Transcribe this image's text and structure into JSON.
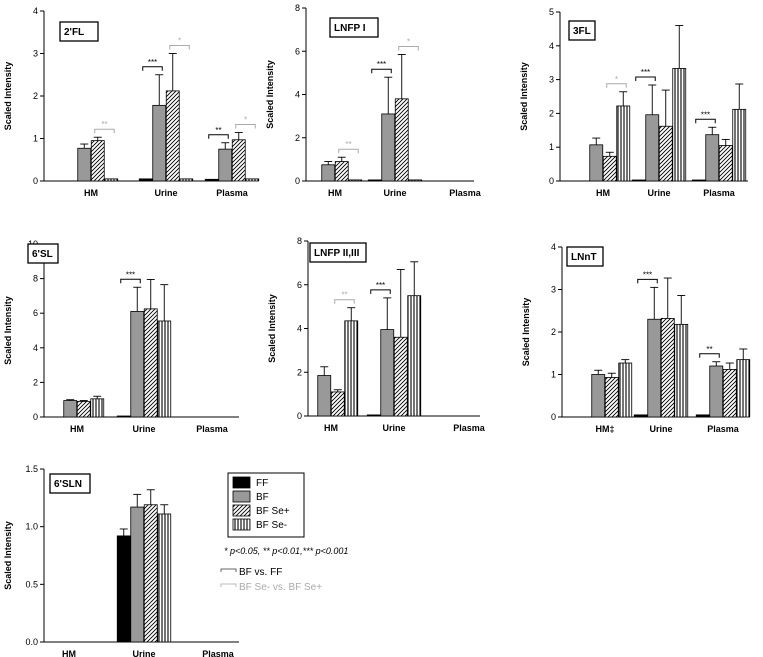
{
  "legend": {
    "items": [
      {
        "label": "FF",
        "pattern": "solid-black"
      },
      {
        "label": "BF",
        "pattern": "solid-gray"
      },
      {
        "label": "BF Se+",
        "pattern": "diagonal-hatch"
      },
      {
        "label": "BF Se-",
        "pattern": "vertical-stripes"
      }
    ],
    "pvalue_note": "* p<0.05, ** p<0.01,*** p<0.001",
    "bracket_legend": [
      {
        "label": "BF vs. FF",
        "color": "#666666"
      },
      {
        "label": "BF Se- vs. BF Se+",
        "color": "#bbbbbb"
      }
    ]
  },
  "colors": {
    "FF": "#000000",
    "BF": "#999999",
    "dark_bracket": "#000000",
    "light_bracket": "#aaaaaa"
  },
  "chart_data": [
    {
      "type": "bar",
      "title": "2'FL",
      "ylabel": "Scaled Intensity",
      "ylim": [
        0,
        4
      ],
      "yticks": [
        "0",
        "1",
        "2",
        "3",
        "4"
      ],
      "categories": [
        "HM",
        "Urine",
        "Plasma"
      ],
      "series": [
        {
          "name": "FF",
          "values": [
            null,
            0.05,
            0.04
          ],
          "errors": [
            0,
            0,
            0
          ]
        },
        {
          "name": "BF",
          "values": [
            0.77,
            1.78,
            0.75
          ],
          "errors": [
            0.1,
            0.72,
            0.15
          ]
        },
        {
          "name": "BF Se+",
          "values": [
            0.95,
            2.12,
            0.97
          ],
          "errors": [
            0.08,
            0.88,
            0.17
          ]
        },
        {
          "name": "BF Se-",
          "values": [
            0.05,
            0.05,
            0.05
          ],
          "errors": [
            0,
            0,
            0
          ]
        }
      ],
      "brackets": [
        {
          "cat": 0,
          "from": 2,
          "to": 3,
          "label": "**",
          "light": true
        },
        {
          "cat": 1,
          "from": 0,
          "to": 1,
          "label": "***",
          "light": false
        },
        {
          "cat": 1,
          "from": 2,
          "to": 3,
          "label": "*",
          "light": true
        },
        {
          "cat": 2,
          "from": 0,
          "to": 1,
          "label": "**",
          "light": false
        },
        {
          "cat": 2,
          "from": 2,
          "to": 3,
          "label": "*",
          "light": true
        }
      ]
    },
    {
      "type": "bar",
      "title": "LNFP I",
      "ylabel": "Scaled Intensity",
      "ylim": [
        0,
        8
      ],
      "yticks": [
        "0",
        "2",
        "4",
        "6",
        "8"
      ],
      "categories": [
        "HM",
        "Urine",
        "Plasma"
      ],
      "series": [
        {
          "name": "FF",
          "values": [
            null,
            0.05,
            null
          ],
          "errors": [
            0,
            0,
            0
          ]
        },
        {
          "name": "BF",
          "values": [
            0.75,
            3.1,
            null
          ],
          "errors": [
            0.15,
            1.7,
            0
          ]
        },
        {
          "name": "BF Se+",
          "values": [
            0.9,
            3.8,
            null
          ],
          "errors": [
            0.2,
            2.05,
            0
          ]
        },
        {
          "name": "BF Se-",
          "values": [
            0.05,
            0.05,
            null
          ],
          "errors": [
            0,
            0,
            0
          ]
        }
      ],
      "brackets": [
        {
          "cat": 0,
          "from": 2,
          "to": 3,
          "label": "**",
          "light": true
        },
        {
          "cat": 1,
          "from": 0,
          "to": 1,
          "label": "***",
          "light": false
        },
        {
          "cat": 1,
          "from": 2,
          "to": 3,
          "label": "*",
          "light": true
        }
      ]
    },
    {
      "type": "bar",
      "title": "3FL",
      "ylabel": "Scaled Intensity",
      "ylim": [
        0,
        5
      ],
      "yticks": [
        "0",
        "1",
        "2",
        "3",
        "4",
        "5"
      ],
      "categories": [
        "HM",
        "Urine",
        "Plasma"
      ],
      "series": [
        {
          "name": "FF",
          "values": [
            null,
            0.03,
            0.03
          ],
          "errors": [
            0,
            0,
            0
          ]
        },
        {
          "name": "BF",
          "values": [
            1.07,
            1.96,
            1.37
          ],
          "errors": [
            0.2,
            0.88,
            0.22
          ]
        },
        {
          "name": "BF Se+",
          "values": [
            0.73,
            1.62,
            1.05
          ],
          "errors": [
            0.12,
            1.07,
            0.18
          ]
        },
        {
          "name": "BF Se-",
          "values": [
            2.22,
            3.33,
            2.12
          ],
          "errors": [
            0.42,
            1.27,
            0.75
          ]
        }
      ],
      "brackets": [
        {
          "cat": 0,
          "from": 2,
          "to": 3,
          "label": "*",
          "light": true
        },
        {
          "cat": 1,
          "from": 0,
          "to": 1,
          "label": "***",
          "light": false
        },
        {
          "cat": 2,
          "from": 0,
          "to": 1,
          "label": "***",
          "light": false
        }
      ]
    },
    {
      "type": "bar",
      "title": "6'SL",
      "ylabel": "Scaled Intensity",
      "ylim": [
        0,
        10
      ],
      "yticks": [
        "0",
        "2",
        "4",
        "6",
        "8",
        "10"
      ],
      "categories": [
        "HM",
        "Urine",
        "Plasma"
      ],
      "series": [
        {
          "name": "FF",
          "values": [
            null,
            0.05,
            null
          ],
          "errors": [
            0,
            0,
            0
          ]
        },
        {
          "name": "BF",
          "values": [
            0.95,
            6.1,
            null
          ],
          "errors": [
            0.05,
            1.4,
            0
          ]
        },
        {
          "name": "BF Se+",
          "values": [
            0.9,
            6.25,
            null
          ],
          "errors": [
            0.05,
            1.7,
            0
          ]
        },
        {
          "name": "BF Se-",
          "values": [
            1.05,
            5.55,
            null
          ],
          "errors": [
            0.15,
            2.1,
            0
          ]
        }
      ],
      "brackets": [
        {
          "cat": 1,
          "from": 0,
          "to": 1,
          "label": "***",
          "light": false
        }
      ]
    },
    {
      "type": "bar",
      "title": "LNFP II,III",
      "ylabel": "Scaled Intensity",
      "ylim": [
        0,
        8
      ],
      "yticks": [
        "0",
        "2",
        "4",
        "6",
        "8"
      ],
      "categories": [
        "HM",
        "Urine",
        "Plasma"
      ],
      "series": [
        {
          "name": "FF",
          "values": [
            null,
            0.05,
            null
          ],
          "errors": [
            0,
            0,
            0
          ]
        },
        {
          "name": "BF",
          "values": [
            1.85,
            3.95,
            null
          ],
          "errors": [
            0.4,
            1.45,
            0
          ]
        },
        {
          "name": "BF Se+",
          "values": [
            1.1,
            3.6,
            null
          ],
          "errors": [
            0.1,
            3.1,
            0
          ]
        },
        {
          "name": "BF Se-",
          "values": [
            4.35,
            5.5,
            null
          ],
          "errors": [
            0.6,
            1.55,
            0
          ]
        }
      ],
      "brackets": [
        {
          "cat": 0,
          "from": 2,
          "to": 3,
          "label": "**",
          "light": true
        },
        {
          "cat": 1,
          "from": 0,
          "to": 1,
          "label": "***",
          "light": false
        }
      ]
    },
    {
      "type": "bar",
      "title": "LNnT",
      "ylabel": "Scaled Intensity",
      "ylim": [
        0,
        4
      ],
      "yticks": [
        "0",
        "1",
        "2",
        "3",
        "4"
      ],
      "categories": [
        "HM‡",
        "Urine",
        "Plasma"
      ],
      "series": [
        {
          "name": "FF",
          "values": [
            null,
            0.05,
            0.05
          ],
          "errors": [
            0,
            0,
            0
          ]
        },
        {
          "name": "BF",
          "values": [
            1.0,
            2.3,
            1.2
          ],
          "errors": [
            0.1,
            0.75,
            0.1
          ]
        },
        {
          "name": "BF Se+",
          "values": [
            0.93,
            2.32,
            1.12
          ],
          "errors": [
            0.1,
            0.95,
            0.15
          ]
        },
        {
          "name": "BF Se-",
          "values": [
            1.27,
            2.18,
            1.35
          ],
          "errors": [
            0.08,
            0.68,
            0.25
          ]
        }
      ],
      "brackets": [
        {
          "cat": 1,
          "from": 0,
          "to": 1,
          "label": "***",
          "light": false
        },
        {
          "cat": 2,
          "from": 0,
          "to": 1,
          "label": "**",
          "light": false
        }
      ]
    },
    {
      "type": "bar",
      "title": "6'SLN",
      "ylabel": "Scaled Intensity",
      "ylim": [
        0,
        1.5
      ],
      "yticks": [
        "0.0",
        "0.5",
        "1.0",
        "1.5"
      ],
      "categories": [
        "HM",
        "Urine",
        "Plasma"
      ],
      "series": [
        {
          "name": "FF",
          "values": [
            null,
            0.92,
            null
          ],
          "errors": [
            0,
            0.06,
            0
          ]
        },
        {
          "name": "BF",
          "values": [
            null,
            1.17,
            null
          ],
          "errors": [
            0,
            0.11,
            0
          ]
        },
        {
          "name": "BF Se+",
          "values": [
            null,
            1.19,
            null
          ],
          "errors": [
            0,
            0.13,
            0
          ]
        },
        {
          "name": "BF Se-",
          "values": [
            null,
            1.11,
            null
          ],
          "errors": [
            0,
            0.08,
            0
          ]
        }
      ],
      "brackets": []
    }
  ]
}
